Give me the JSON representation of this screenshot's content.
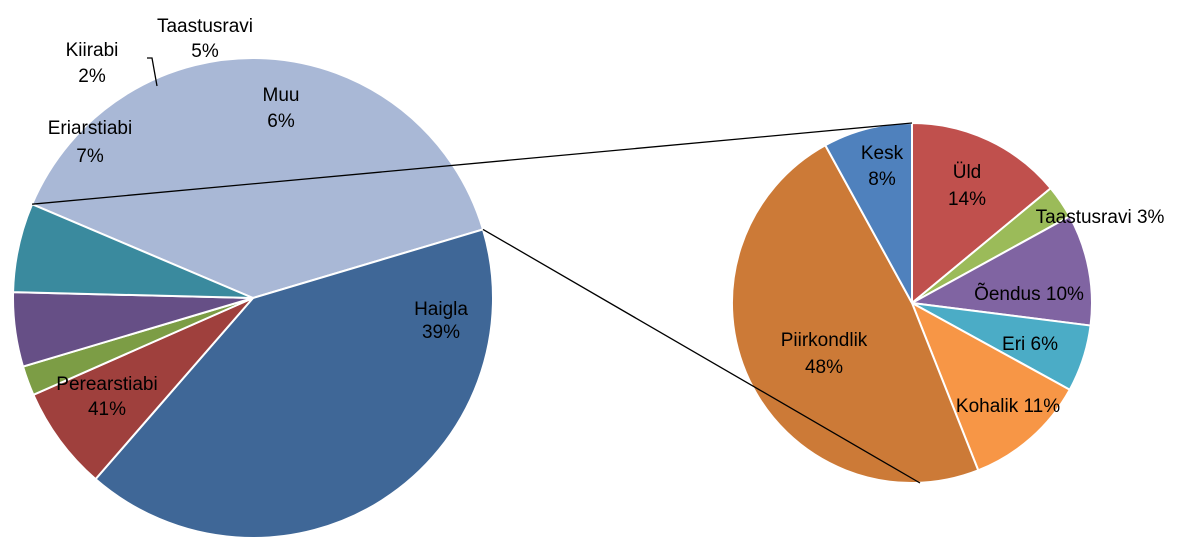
{
  "chart_data": {
    "type": "pie",
    "subtype": "pie-of-pie",
    "main": {
      "slices": [
        {
          "label": "Haigla",
          "value": 39,
          "value_label": "39%",
          "color": "#A9B8D6"
        },
        {
          "label": "Perearstiabi",
          "value": 41,
          "value_label": "41%",
          "color": "#3F6797"
        },
        {
          "label": "Eriarstiabi",
          "value": 7,
          "value_label": "7%",
          "color": "#9F403D"
        },
        {
          "label": "Kiirabi",
          "value": 2,
          "value_label": "2%",
          "color": "#7C9D45"
        },
        {
          "label": "Taastusravi",
          "value": 5,
          "value_label": "5%",
          "color": "#664F86"
        },
        {
          "label": "Muu",
          "value": 6,
          "value_label": "6%",
          "color": "#3A8A9E"
        }
      ]
    },
    "secondary": {
      "breakdown_of": "Muu",
      "slices": [
        {
          "label": "Üld",
          "value": 14,
          "value_label": "14%",
          "color": "#C0504D"
        },
        {
          "label": "Taastusravi",
          "value": 3,
          "value_label": "3%",
          "color": "#9BBB59"
        },
        {
          "label": "Õendus",
          "value": 10,
          "value_label": "10%",
          "color": "#8064A2"
        },
        {
          "label": "Eri",
          "value": 6,
          "value_label": "6%",
          "color": "#4BACC6"
        },
        {
          "label": "Kohalik",
          "value": 11,
          "value_label": "11%",
          "color": "#F79646"
        },
        {
          "label": "Piirkondlik",
          "value": 48,
          "value_label": "48%",
          "color": "#CC7A37"
        },
        {
          "label": "Kesk",
          "value": 8,
          "value_label": "8%",
          "color": "#4F81BD"
        }
      ]
    }
  }
}
